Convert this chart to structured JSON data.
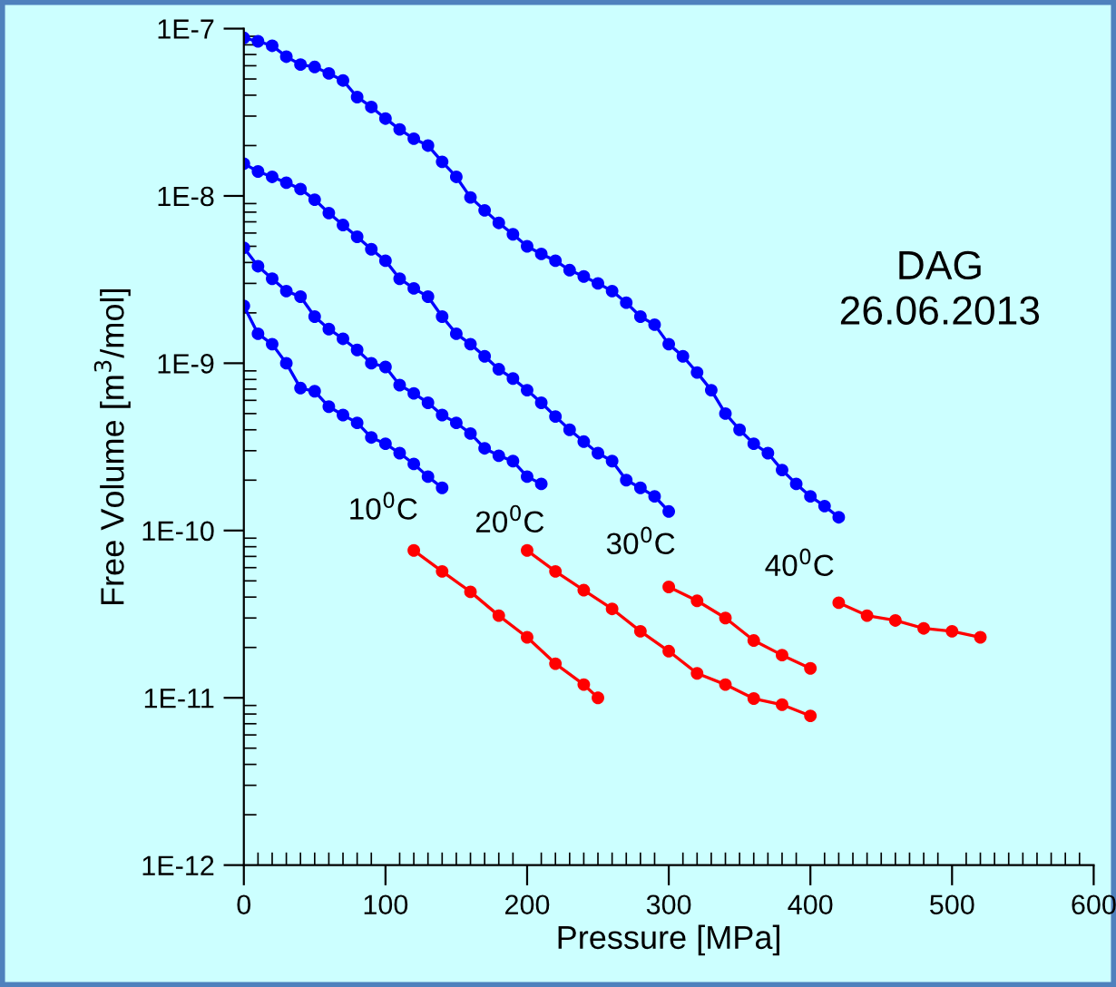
{
  "chart_data": {
    "type": "line",
    "xlabel": "Pressure [MPa]",
    "ylabel": "Free Volume [m$^{3}$/mol]",
    "log": "y",
    "marker": "circle",
    "line_style": "solid",
    "grid": false,
    "legend": false,
    "xlim": [
      0,
      600
    ],
    "xticks": [
      0,
      100,
      200,
      300,
      400,
      500,
      600
    ],
    "ylim": [
      1e-12,
      1e-07
    ],
    "yticks": [
      {
        "value": 1e-12,
        "label": "1E-12"
      },
      {
        "value": 1e-11,
        "label": "1E-11"
      },
      {
        "value": 1e-10,
        "label": "1E-10"
      },
      {
        "value": 1e-09,
        "label": "1E-9"
      },
      {
        "value": 1e-08,
        "label": "1E-8"
      },
      {
        "value": 1e-07,
        "label": "1E-7"
      }
    ],
    "series": [
      {
        "color": "#0000ff",
        "x": [
          0,
          10,
          20,
          30,
          40,
          50,
          60,
          70,
          80,
          90,
          100,
          110,
          120,
          130,
          140,
          150,
          160,
          170,
          180,
          190,
          200,
          210,
          220,
          230,
          240,
          250,
          260,
          270,
          280,
          290,
          300,
          310,
          320,
          330,
          340,
          350,
          360,
          370,
          380,
          390,
          400,
          410,
          420
        ],
        "values": [
          8.8e-08,
          8.4e-08,
          7.9e-08,
          6.8e-08,
          6.1e-08,
          5.9e-08,
          5.4e-08,
          4.9e-08,
          3.9e-08,
          3.4e-08,
          2.9e-08,
          2.5e-08,
          2.2e-08,
          2e-08,
          1.6e-08,
          1.3e-08,
          9.8e-09,
          8.2e-09,
          6.9e-09,
          5.9e-09,
          5e-09,
          4.5e-09,
          4.1e-09,
          3.6e-09,
          3.3e-09,
          3e-09,
          2.7e-09,
          2.3e-09,
          1.9e-09,
          1.7e-09,
          1.3e-09,
          1.1e-09,
          8.8e-10,
          6.9e-10,
          5e-10,
          4e-10,
          3.3e-10,
          2.9e-10,
          2.3e-10,
          1.9e-10,
          1.6e-10,
          1.4e-10,
          1.2e-10
        ]
      },
      {
        "color": "#0000ff",
        "x": [
          0,
          10,
          20,
          30,
          40,
          50,
          60,
          70,
          80,
          90,
          100,
          110,
          120,
          130,
          140,
          150,
          160,
          170,
          180,
          190,
          200,
          210,
          220,
          230,
          240,
          250,
          260,
          270,
          280,
          290,
          300
        ],
        "values": [
          1.56e-08,
          1.4e-08,
          1.3e-08,
          1.2e-08,
          1.1e-08,
          9.5e-09,
          7.9e-09,
          6.7e-09,
          5.7e-09,
          4.8e-09,
          4.1e-09,
          3.2e-09,
          2.8e-09,
          2.5e-09,
          1.9e-09,
          1.5e-09,
          1.3e-09,
          1.1e-09,
          9.2e-10,
          8.1e-10,
          6.9e-10,
          5.8e-10,
          4.8e-10,
          4e-10,
          3.4e-10,
          2.9e-10,
          2.6e-10,
          2e-10,
          1.8e-10,
          1.6e-10,
          1.3e-10
        ]
      },
      {
        "color": "#0000ff",
        "x": [
          0,
          10,
          20,
          30,
          40,
          50,
          60,
          70,
          80,
          90,
          100,
          110,
          120,
          130,
          140,
          150,
          160,
          170,
          180,
          190,
          200,
          210
        ],
        "values": [
          4.9e-09,
          3.8e-09,
          3.2e-09,
          2.7e-09,
          2.5e-09,
          1.9e-09,
          1.6e-09,
          1.4e-09,
          1.2e-09,
          1e-09,
          9.5e-10,
          7.4e-10,
          6.6e-10,
          5.8e-10,
          4.9e-10,
          4.4e-10,
          3.8e-10,
          3.1e-10,
          2.8e-10,
          2.6e-10,
          2.1e-10,
          1.9e-10
        ]
      },
      {
        "color": "#0000ff",
        "x": [
          0,
          10,
          20,
          30,
          40,
          50,
          60,
          70,
          80,
          90,
          100,
          110,
          120,
          130,
          140
        ],
        "values": [
          2.2e-09,
          1.5e-09,
          1.3e-09,
          1e-09,
          7.1e-10,
          6.8e-10,
          5.5e-10,
          4.9e-10,
          4.4e-10,
          3.6e-10,
          3.3e-10,
          2.9e-10,
          2.5e-10,
          2.1e-10,
          1.8e-10
        ]
      },
      {
        "color": "#ff0000",
        "x": [
          120,
          140,
          160,
          180,
          200,
          220,
          240,
          250
        ],
        "values": [
          7.6e-11,
          5.7e-11,
          4.3e-11,
          3.1e-11,
          2.3e-11,
          1.6e-11,
          1.2e-11,
          1e-11
        ]
      },
      {
        "color": "#ff0000",
        "x": [
          200,
          220,
          240,
          260,
          280,
          300,
          320,
          340,
          360,
          380,
          400
        ],
        "values": [
          7.6e-11,
          5.7e-11,
          4.4e-11,
          3.4e-11,
          2.5e-11,
          1.9e-11,
          1.4e-11,
          1.2e-11,
          9.9e-12,
          9.1e-12,
          7.8e-12
        ]
      },
      {
        "color": "#ff0000",
        "x": [
          300,
          320,
          340,
          360,
          380,
          400
        ],
        "values": [
          4.6e-11,
          3.8e-11,
          3e-11,
          2.2e-11,
          1.8e-11,
          1.5e-11
        ]
      },
      {
        "color": "#ff0000",
        "x": [
          420,
          440,
          460,
          480,
          500,
          520
        ],
        "values": [
          3.7e-11,
          3.1e-11,
          2.9e-11,
          2.6e-11,
          2.5e-11,
          2.3e-11
        ]
      }
    ],
    "annotations": [
      "10$^{0}$C",
      "20$^{0}$C",
      "30$^{0}$C",
      "40$^{0}$C",
      "DAG",
      "26.06.2013"
    ]
  }
}
